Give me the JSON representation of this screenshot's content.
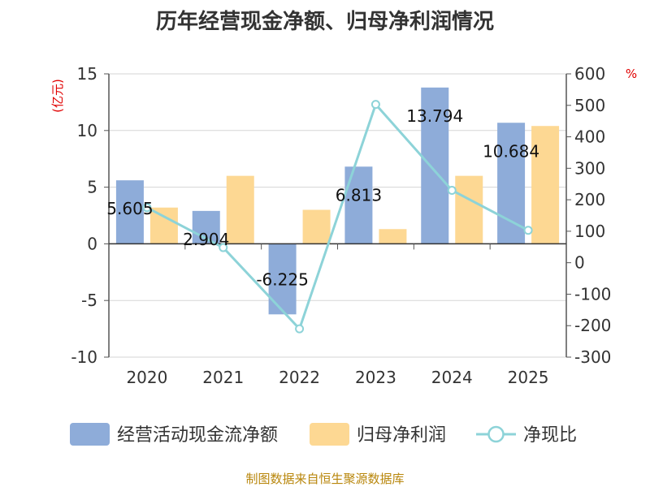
{
  "title": "历年经营现金净额、归母净利润情况",
  "source_note": "制图数据来自恒生聚源数据库",
  "chart_data": {
    "type": "bar",
    "categories": [
      "2020",
      "2021",
      "2022",
      "2023",
      "2024",
      "2025"
    ],
    "y_left": {
      "label": "(亿元)",
      "min": -10,
      "max": 15,
      "ticks": [
        15,
        10,
        5,
        0,
        -5,
        -10
      ]
    },
    "y_right": {
      "label": "%",
      "min": -300,
      "max": 600,
      "ticks": [
        600,
        500,
        400,
        300,
        200,
        100,
        0,
        -100,
        -200,
        -300
      ]
    },
    "series": [
      {
        "name": "经营活动现金流净额",
        "kind": "bar",
        "axis": "left",
        "color": "#8eacd9",
        "values": [
          5.605,
          2.904,
          -6.225,
          6.813,
          13.794,
          10.684
        ],
        "data_labels": [
          "5.605",
          "2.904",
          "-6.225",
          "6.813",
          "13.794",
          "10.684"
        ]
      },
      {
        "name": "归母净利润",
        "kind": "bar",
        "axis": "left",
        "color": "#fdd893",
        "values": [
          3.2,
          6.0,
          3.0,
          1.3,
          6.0,
          10.4
        ]
      },
      {
        "name": "净现比",
        "kind": "line",
        "axis": "right",
        "color": "#8dd3d8",
        "values": [
          175,
          48,
          -210,
          503,
          230,
          103
        ]
      }
    ],
    "grid": true,
    "legend_position": "bottom"
  }
}
